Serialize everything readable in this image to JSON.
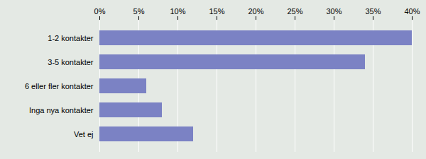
{
  "chart_data": {
    "type": "bar",
    "orientation": "horizontal",
    "categories": [
      "1-2 kontakter",
      "3-5 kontakter",
      "6 eller fler kontakter",
      "Inga nya kontakter",
      "Vet ej"
    ],
    "values": [
      40,
      34,
      6,
      8,
      12
    ],
    "color": "#7b82c4",
    "xlim": [
      0,
      40
    ],
    "xticks": [
      {
        "value": 0,
        "label": "0%"
      },
      {
        "value": 5,
        "label": "5%"
      },
      {
        "value": 10,
        "label": "10%"
      },
      {
        "value": 15,
        "label": "15%"
      },
      {
        "value": 20,
        "label": "20%"
      },
      {
        "value": 25,
        "label": "25%"
      },
      {
        "value": 30,
        "label": "30%"
      },
      {
        "value": 35,
        "label": "35%"
      },
      {
        "value": 40,
        "label": "40%"
      }
    ],
    "grid": true
  }
}
